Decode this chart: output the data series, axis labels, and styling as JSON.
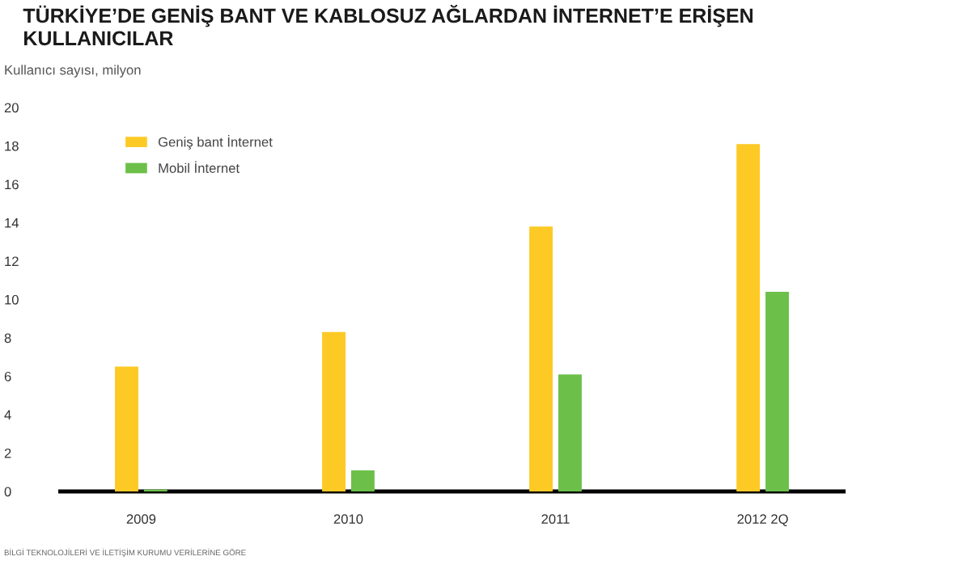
{
  "chart_data": {
    "type": "bar",
    "title": "TÜRKİYE’DE GENİŞ BANT VE KABLOSUZ AĞLARDAN İNTERNET’E ERİŞEN KULLANICILAR",
    "ylabel": "Kullanıcı sayısı, milyon",
    "categories": [
      "2009",
      "2010",
      "2011",
      "2012 2Q"
    ],
    "series": [
      {
        "name": "Geniş bant İnternet",
        "color": "#fdca25",
        "values": [
          6.5,
          8.3,
          13.8,
          18.1
        ]
      },
      {
        "name": "Mobil İnternet",
        "color": "#6cc049",
        "values": [
          0.1,
          1.1,
          6.1,
          10.4
        ]
      }
    ],
    "ylim": [
      0,
      20
    ],
    "yticks": [
      0,
      2,
      4,
      6,
      8,
      10,
      12,
      14,
      16,
      18,
      20
    ],
    "legend": "top left",
    "annotations": [
      "BİLGİ TEKNOLOJİLERİ VE İLETİŞİM KURUMU VERİLERİNE GÖRE"
    ]
  }
}
